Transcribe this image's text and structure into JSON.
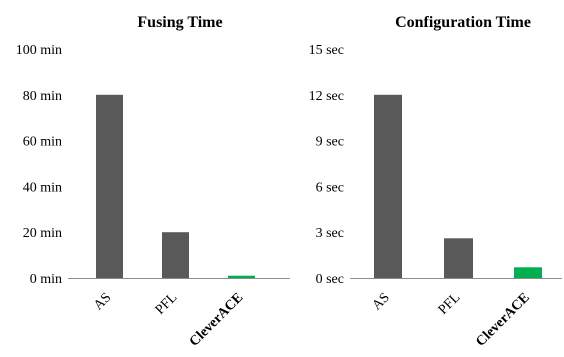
{
  "chart_data": [
    {
      "type": "bar",
      "title": "Fusing Time",
      "categories": [
        "AS",
        "PFL",
        "CleverACE"
      ],
      "values": [
        80,
        20,
        1
      ],
      "unit": "min",
      "ylim": [
        0,
        100
      ],
      "yticks": [
        "0 min",
        "20 min",
        "40 min",
        "60 min",
        "80 min",
        "100 min"
      ],
      "grid": false,
      "bar_colors": [
        "#595959",
        "#595959",
        "#00b050"
      ]
    },
    {
      "type": "bar",
      "title": "Configuration Time",
      "categories": [
        "AS",
        "PFL",
        "CleverACE"
      ],
      "values": [
        12,
        2.6,
        0.7
      ],
      "unit": "sec",
      "ylim": [
        0,
        15
      ],
      "yticks": [
        "0 sec",
        "3 sec",
        "6 sec",
        "9 sec",
        "12 sec",
        "15 sec"
      ],
      "grid": false,
      "bar_colors": [
        "#595959",
        "#595959",
        "#00b050"
      ]
    }
  ]
}
